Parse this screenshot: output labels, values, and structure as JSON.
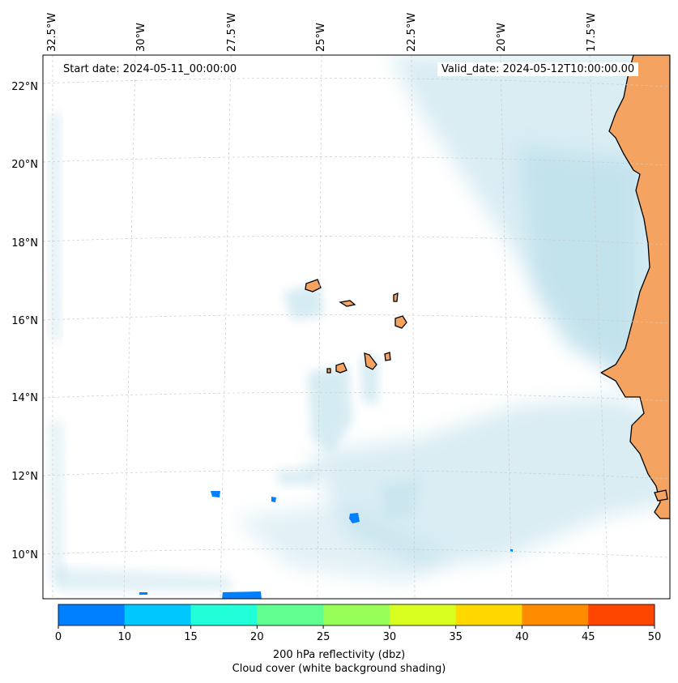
{
  "start_date": "Start date: 2024-05-11_00:00:00",
  "valid_date": "Valid_date: 2024-05-12T10:00:00.00",
  "lon_labels": [
    "32.5°W",
    "30°W",
    "27.5°W",
    "25°W",
    "22.5°W",
    "20°W",
    "17.5°W"
  ],
  "lat_labels": [
    "22°N",
    "20°N",
    "18°N",
    "16°N",
    "14°N",
    "12°N",
    "10°N"
  ],
  "colorbar": {
    "ticks": [
      "0",
      "10",
      "15",
      "20",
      "25",
      "30",
      "35",
      "40",
      "45",
      "50"
    ],
    "colors": [
      "#0080ff",
      "#00c8ff",
      "#20ffd8",
      "#60ff90",
      "#98ff58",
      "#d8ff20",
      "#ffd800",
      "#ff8c00",
      "#ff4600"
    ],
    "label_line1": "200 hPa reflectivity (dbz)",
    "label_line2": "Cloud cover (white background shading)"
  },
  "colors": {
    "cloud": "#add8e6",
    "land": "#f4a460",
    "grid": "#cccccc"
  }
}
